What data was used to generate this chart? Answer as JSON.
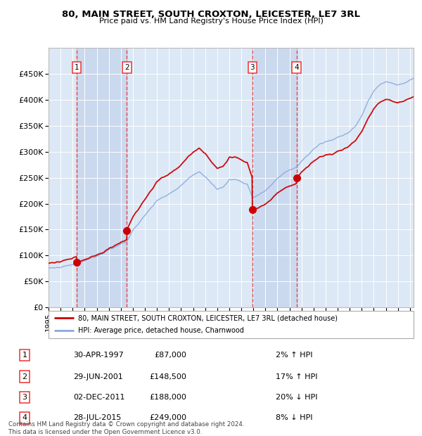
{
  "title": "80, MAIN STREET, SOUTH CROXTON, LEICESTER, LE7 3RL",
  "subtitle": "Price paid vs. HM Land Registry's House Price Index (HPI)",
  "background_color": "#ffffff",
  "plot_bg_color": "#dce8f5",
  "grid_color": "#ffffff",
  "red_line_color": "#cc0000",
  "blue_line_color": "#88aadd",
  "dashed_line_color": "#ee3333",
  "shade_color": "#c8d8ee",
  "transactions": [
    {
      "label": "1",
      "date": "30-APR-1997",
      "price": 87000,
      "pct": "2% ↑ HPI",
      "x_year": 1997.33
    },
    {
      "label": "2",
      "date": "29-JUN-2001",
      "price": 148500,
      "pct": "17% ↑ HPI",
      "x_year": 2001.5
    },
    {
      "label": "3",
      "date": "02-DEC-2011",
      "price": 188000,
      "pct": "20% ↓ HPI",
      "x_year": 2011.92
    },
    {
      "label": "4",
      "date": "28-JUL-2015",
      "price": 249000,
      "pct": "8% ↓ HPI",
      "x_year": 2015.58
    }
  ],
  "legend_entries": [
    "80, MAIN STREET, SOUTH CROXTON, LEICESTER, LE7 3RL (detached house)",
    "HPI: Average price, detached house, Charnwood"
  ],
  "footer_line1": "Contains HM Land Registry data © Crown copyright and database right 2024.",
  "footer_line2": "This data is licensed under the Open Government Licence v3.0.",
  "ylim": [
    0,
    500000
  ],
  "xlim_start": 1995.0,
  "xlim_end": 2025.3,
  "yticks": [
    0,
    50000,
    100000,
    150000,
    200000,
    250000,
    300000,
    350000,
    400000,
    450000
  ],
  "ytick_labels": [
    "£0",
    "£50K",
    "£100K",
    "£150K",
    "£200K",
    "£250K",
    "£300K",
    "£350K",
    "£400K",
    "£450K"
  ]
}
